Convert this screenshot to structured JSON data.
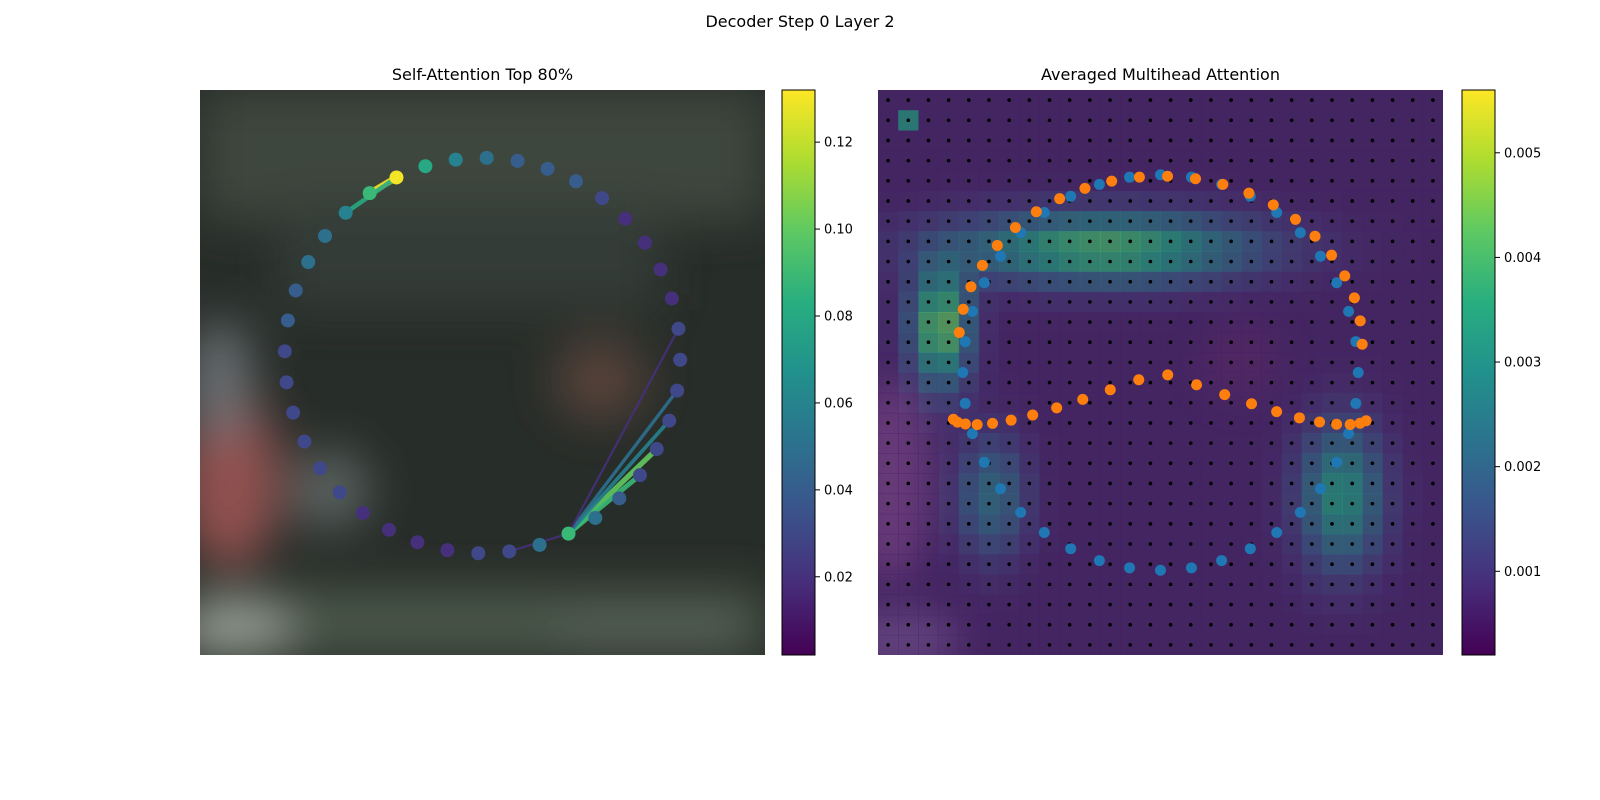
{
  "figure": {
    "title": "Decoder Step 0 Layer 2"
  },
  "chart_data": [
    {
      "type": "scatter",
      "title": "Self-Attention Top 80%",
      "xlim": [
        0,
        1
      ],
      "ylim": [
        0,
        1
      ],
      "points": {
        "count": 40,
        "center": [
          0.5,
          0.53
        ],
        "radius": [
          0.35,
          0.35
        ],
        "values": [
          0.13,
          0.08,
          0.06,
          0.05,
          0.04,
          0.04,
          0.04,
          0.03,
          0.02,
          0.02,
          0.02,
          0.02,
          0.03,
          0.03,
          0.03,
          0.03,
          0.03,
          0.03,
          0.04,
          0.05,
          0.09,
          0.05,
          0.03,
          0.03,
          0.02,
          0.02,
          0.02,
          0.02,
          0.03,
          0.03,
          0.03,
          0.03,
          0.03,
          0.03,
          0.04,
          0.04,
          0.05,
          0.05,
          0.06,
          0.09
        ]
      },
      "edges": [
        {
          "from": 0,
          "to": 39,
          "value": 0.13
        },
        {
          "from": 0,
          "to": 38,
          "value": 0.08
        },
        {
          "from": 20,
          "to": 16,
          "value": 0.1
        },
        {
          "from": 20,
          "to": 17,
          "value": 0.09
        },
        {
          "from": 20,
          "to": 15,
          "value": 0.06
        },
        {
          "from": 20,
          "to": 14,
          "value": 0.05
        },
        {
          "from": 20,
          "to": 22,
          "value": 0.02
        },
        {
          "from": 20,
          "to": 12,
          "value": 0.02
        }
      ],
      "colorbar": {
        "min": 0.002,
        "max": 0.132,
        "ticks": [
          0.02,
          0.04,
          0.06,
          0.08,
          0.1,
          0.12
        ],
        "tick_labels": [
          "0.02",
          "0.04",
          "0.06",
          "0.08",
          "0.10",
          "0.12"
        ]
      }
    },
    {
      "type": "heatmap",
      "title": "Averaged Multihead Attention",
      "xlim": [
        0,
        1
      ],
      "ylim": [
        0,
        1
      ],
      "grid": {
        "rows": 28,
        "cols": 28
      },
      "series": [
        {
          "role": "reference points",
          "color": "#1f77b4",
          "count": 40,
          "center": [
            0.5,
            0.5
          ],
          "radius": [
            0.35,
            0.35
          ]
        },
        {
          "role": "sampled points",
          "color": "#ff7f0e",
          "count": 45,
          "center": [
            0.5,
            0.5
          ],
          "radius": [
            0.35,
            0.35
          ]
        }
      ],
      "colorbar": {
        "min": 0.0002,
        "max": 0.0056,
        "ticks": [
          0.001,
          0.002,
          0.003,
          0.004,
          0.005
        ],
        "tick_labels": [
          "0.001",
          "0.002",
          "0.003",
          "0.004",
          "0.005"
        ]
      }
    }
  ]
}
